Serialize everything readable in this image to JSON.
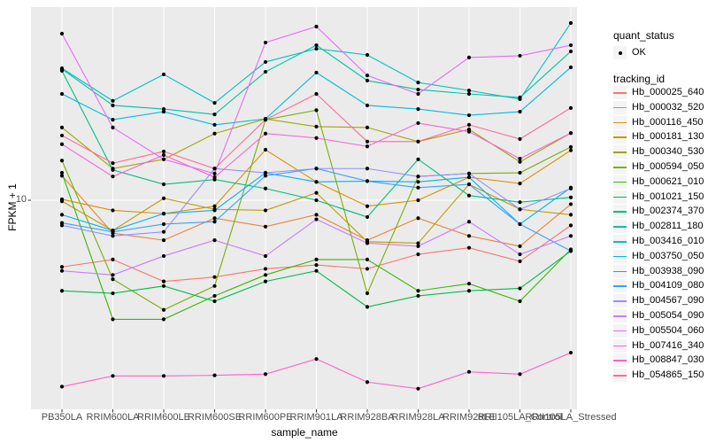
{
  "chart_data": {
    "type": "line",
    "title": "",
    "xlabel": "sample_name",
    "ylabel": "FPKM + 1",
    "y_scale": "log10",
    "y_tick_label": "10",
    "y_tick_value": 10,
    "grid": "on",
    "panel_bg": "#EBEBEB",
    "grid_color": "#FFFFFF",
    "point_color": "#000000",
    "axis_text_color": "#4d4d4d",
    "legend_position": "right",
    "categories": [
      "PB350LA",
      "RRIM600LA",
      "RRIM600LE",
      "RRIM600SE",
      "RRIM600PE",
      "RRIM901LA",
      "RRIM928BA",
      "RRIM928LA",
      "RRIM928LE",
      "RRII105LA_Control",
      "RRII105LA_Stressed"
    ],
    "legend": {
      "quant_status_title": "quant_status",
      "quant_status_items": [
        "OK"
      ],
      "tracking_id_title": "tracking_id"
    },
    "series": [
      {
        "tracking_id": "Hb_000025_640",
        "color": "#F8766D",
        "values": [
          5.0,
          5.4,
          4.3,
          4.5,
          4.9,
          5.1,
          4.9,
          5.7,
          6.1,
          5.3,
          7.7
        ]
      },
      {
        "tracking_id": "Hb_000032_520",
        "color": "#EA8331",
        "values": [
          12.9,
          7.1,
          6.6,
          8.3,
          7.6,
          8.6,
          6.6,
          8.3,
          6.9,
          6.2,
          9.6
        ]
      },
      {
        "tracking_id": "Hb_000116_450",
        "color": "#D89000",
        "values": [
          10.1,
          9.0,
          8.7,
          9.4,
          16.9,
          12.1,
          9.4,
          10.0,
          12.7,
          11.9,
          16.8
        ]
      },
      {
        "tracking_id": "Hb_000181_130",
        "color": "#C09B00",
        "values": [
          9.9,
          7.3,
          10.2,
          9.1,
          9.0,
          10.8,
          6.5,
          6.4,
          11.8,
          9.1,
          8.6
        ]
      },
      {
        "tracking_id": "Hb_000340_530",
        "color": "#A3A500",
        "values": [
          21.3,
          13.9,
          15.3,
          20.0,
          23.3,
          21.5,
          21.3,
          18.4,
          20.9,
          14.9,
          20.1
        ]
      },
      {
        "tracking_id": "Hb_000594_050",
        "color": "#7CAE00",
        "values": [
          15.1,
          4.4,
          3.2,
          4.1,
          23.1,
          25.5,
          3.8,
          12.8,
          13.2,
          13.3,
          17.4
        ]
      },
      {
        "tracking_id": "Hb_000621_010",
        "color": "#39B600",
        "values": [
          13.3,
          2.9,
          2.9,
          3.7,
          4.6,
          5.4,
          5.4,
          3.9,
          4.2,
          3.5,
          6.0
        ]
      },
      {
        "tracking_id": "Hb_001021_150",
        "color": "#00BB4E",
        "values": [
          3.9,
          3.8,
          4.1,
          3.5,
          4.3,
          4.8,
          3.3,
          3.7,
          3.9,
          4.0,
          5.9
        ]
      },
      {
        "tracking_id": "Hb_002374_370",
        "color": "#00BF7D",
        "values": [
          38.4,
          13.7,
          11.8,
          12.4,
          11.3,
          10.0,
          8.4,
          15.3,
          10.5,
          9.8,
          10.3
        ]
      },
      {
        "tracking_id": "Hb_002811_180",
        "color": "#00C1A3",
        "values": [
          39.1,
          26.8,
          25.8,
          24.4,
          38.0,
          50.1,
          34.7,
          31.6,
          30.2,
          29.1,
          47.0
        ]
      },
      {
        "tracking_id": "Hb_003416_010",
        "color": "#00BFC4",
        "values": [
          39.4,
          28.1,
          37.0,
          27.5,
          42.1,
          48.3,
          45.3,
          34.0,
          31.3,
          28.6,
          63.1
        ]
      },
      {
        "tracking_id": "Hb_003750_050",
        "color": "#00BAE0",
        "values": [
          30.2,
          23.1,
          25.1,
          21.9,
          23.3,
          37.7,
          26.8,
          25.8,
          24.2,
          25.1,
          39.8
        ]
      },
      {
        "tracking_id": "Hb_003938_090",
        "color": "#00B0F6",
        "values": [
          8.6,
          7.3,
          8.7,
          9.0,
          13.3,
          12.1,
          12.2,
          12.1,
          12.7,
          7.8,
          11.4
        ]
      },
      {
        "tracking_id": "Hb_004109_080",
        "color": "#35A2FF",
        "values": [
          7.9,
          7.2,
          7.8,
          8.0,
          12.9,
          13.9,
          12.2,
          11.4,
          11.8,
          7.8,
          5.9
        ]
      },
      {
        "tracking_id": "Hb_004567_090",
        "color": "#9590FF",
        "values": [
          7.7,
          6.9,
          7.2,
          13.9,
          13.3,
          13.9,
          13.9,
          12.8,
          13.2,
          9.1,
          11.3
        ]
      },
      {
        "tracking_id": "Hb_005054_090",
        "color": "#C77CFF",
        "values": [
          4.8,
          4.6,
          5.6,
          6.6,
          5.6,
          8.2,
          6.4,
          6.2,
          8.0,
          5.7,
          6.9
        ]
      },
      {
        "tracking_id": "Hb_005504_060",
        "color": "#E76BF3",
        "values": [
          56.5,
          21.3,
          15.3,
          13.2,
          51.5,
          60.8,
          36.6,
          30.2,
          44.1,
          44.9,
          50.1
        ]
      },
      {
        "tracking_id": "Hb_007416_340",
        "color": "#FA62DB",
        "values": [
          17.9,
          12.8,
          16.0,
          12.7,
          20.0,
          19.1,
          17.5,
          22.3,
          20.4,
          15.4,
          20.1
        ]
      },
      {
        "tracking_id": "Hb_008847_030",
        "color": "#FF61C9",
        "values": [
          1.44,
          1.61,
          1.61,
          1.62,
          1.64,
          1.92,
          1.51,
          1.41,
          1.68,
          1.64,
          2.05
        ]
      },
      {
        "tracking_id": "Hb_054865_150",
        "color": "#FF6A98",
        "values": [
          19.6,
          14.7,
          16.6,
          13.9,
          23.1,
          30.2,
          18.4,
          18.4,
          21.9,
          18.9,
          26.1
        ]
      }
    ]
  }
}
